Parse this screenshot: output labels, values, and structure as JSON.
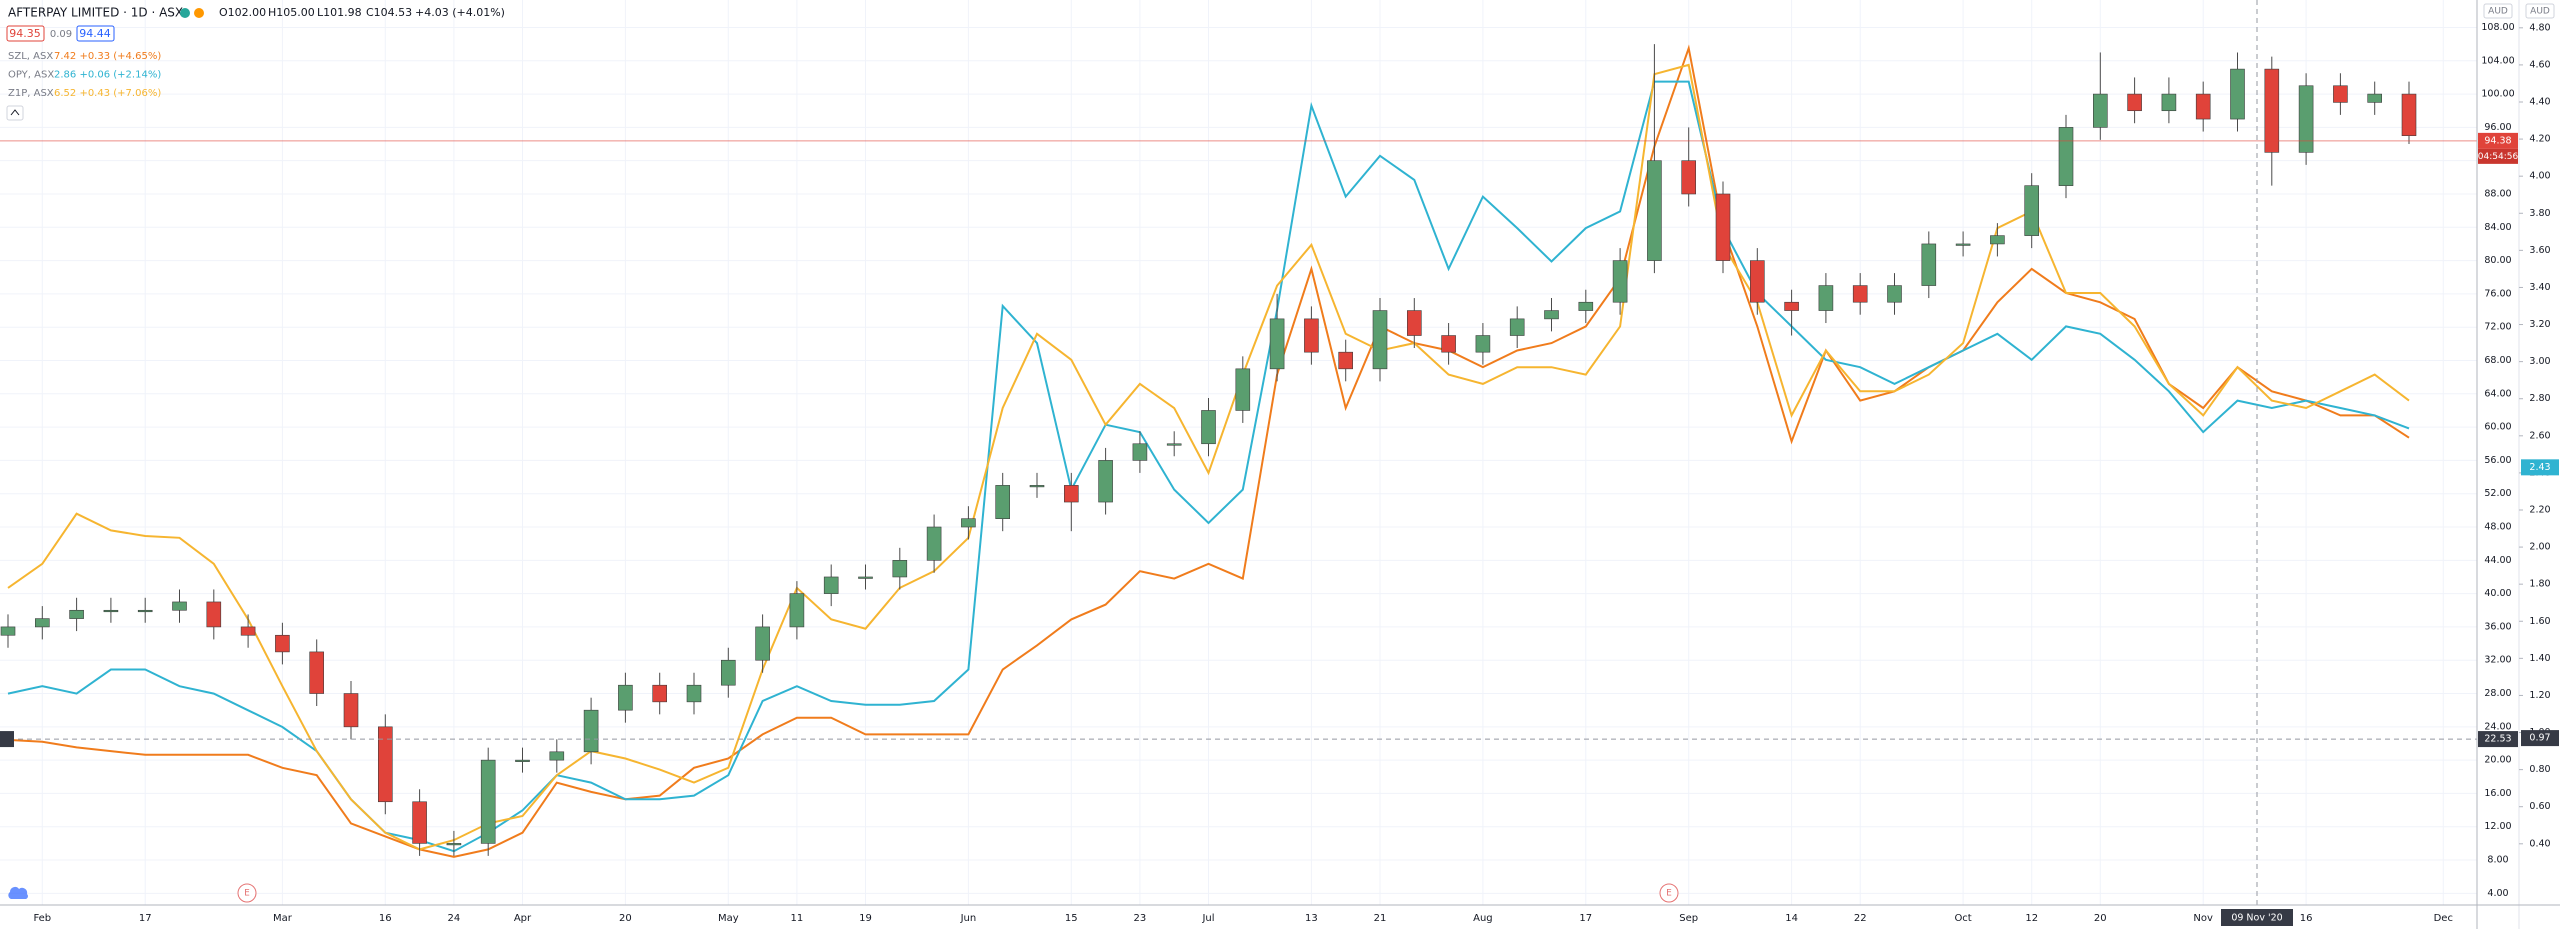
{
  "header": {
    "title": "AFTERPAY LIMITED · 1D · ASX",
    "ohlc": [
      "O102.00",
      "H105.00",
      "L101.98",
      "C104.53",
      "+4.03 (+4.01%)"
    ],
    "bid": "94.35",
    "spread": "0.09",
    "ask": "94.44",
    "axis_units": [
      "AUD",
      "AUD"
    ]
  },
  "chart_data": {
    "type": "candlestick",
    "grid": true,
    "categories": [
      null,
      "Feb",
      null,
      null,
      "17",
      null,
      null,
      null,
      "Mar",
      null,
      null,
      "16",
      null,
      "24",
      null,
      "Apr",
      null,
      null,
      "20",
      null,
      null,
      "May",
      null,
      "11",
      null,
      "19",
      null,
      null,
      "Jun",
      null,
      null,
      "15",
      null,
      "23",
      null,
      "Jul",
      null,
      null,
      "13",
      null,
      "21",
      null,
      null,
      "Aug",
      null,
      null,
      "17",
      null,
      null,
      "Sep",
      null,
      null,
      "14",
      null,
      "22",
      null,
      null,
      "Oct",
      null,
      "12",
      null,
      "20",
      null,
      null,
      "Nov",
      null,
      null,
      "16",
      null,
      null,
      null,
      "Dec"
    ],
    "open": [
      35,
      36,
      37,
      38,
      38,
      38,
      39,
      36,
      35,
      33,
      28,
      24,
      15,
      10,
      10,
      20,
      20,
      21,
      26,
      29,
      27,
      29,
      32,
      36,
      40,
      42,
      42,
      44,
      48,
      49,
      53,
      53,
      51,
      56,
      58,
      58,
      62,
      67,
      73,
      69,
      67,
      74,
      71,
      69,
      71,
      73,
      74,
      75,
      80,
      92,
      88,
      80,
      75,
      74,
      77,
      75,
      77,
      82,
      82,
      83,
      89,
      96,
      100,
      98,
      100,
      97,
      103,
      93,
      101,
      99,
      100,
      null
    ],
    "high": [
      37.5,
      38.5,
      39.5,
      39.5,
      39.5,
      40.5,
      40.5,
      37.5,
      36.5,
      34.5,
      29.5,
      25.5,
      16.5,
      11.5,
      21.5,
      21.5,
      22.5,
      27.5,
      30.5,
      30.5,
      30.5,
      33.5,
      37.5,
      41.5,
      43.5,
      43.5,
      45.5,
      49.5,
      50.5,
      54.5,
      54.5,
      54.5,
      57.5,
      59.5,
      59.5,
      63.5,
      68.5,
      76,
      74.5,
      70.5,
      75.5,
      75.5,
      72.5,
      72.5,
      74.5,
      75.5,
      76.5,
      81.5,
      106,
      96,
      89.5,
      81.5,
      76.5,
      78.5,
      78.5,
      78.5,
      83.5,
      83.5,
      84.5,
      90.5,
      97.5,
      105,
      102,
      102,
      101.5,
      105,
      104.5,
      102.5,
      102.5,
      101.5,
      101.5,
      null
    ],
    "low": [
      33.5,
      34.5,
      35.5,
      36.5,
      36.5,
      36.5,
      34.5,
      33.5,
      31.5,
      26.5,
      22.5,
      13.5,
      8.5,
      8.5,
      8.5,
      18.5,
      18.5,
      19.5,
      24.5,
      25.5,
      25.5,
      27.5,
      30.5,
      34.5,
      38.5,
      40.5,
      40.5,
      42.5,
      46.5,
      47.5,
      51.5,
      47.5,
      49.5,
      54.5,
      56.5,
      56.5,
      60.5,
      65.5,
      67.5,
      65.5,
      65.5,
      69.5,
      67.5,
      67.5,
      69.5,
      71.5,
      72.5,
      73.5,
      78.5,
      86.5,
      78.5,
      73.5,
      71,
      72.5,
      73.5,
      73.5,
      75.5,
      80.5,
      80.5,
      81.5,
      87.5,
      94.5,
      96.5,
      96.5,
      95.5,
      95.5,
      89,
      91.5,
      97.5,
      97.5,
      94,
      null
    ],
    "close": [
      36,
      37,
      38,
      38,
      38,
      39,
      36,
      35,
      33,
      28,
      24,
      15,
      10,
      10,
      20,
      20,
      21,
      26,
      29,
      27,
      29,
      32,
      36,
      40,
      42,
      42,
      44,
      48,
      49,
      53,
      53,
      51,
      56,
      58,
      58,
      62,
      67,
      73,
      69,
      67,
      74,
      71,
      69,
      71,
      73,
      74,
      75,
      80,
      92,
      88,
      80,
      75,
      74,
      77,
      75,
      77,
      82,
      82,
      83,
      89,
      96,
      100,
      98,
      100,
      97,
      103,
      93,
      101,
      99,
      100,
      95,
      null
    ],
    "up_color": "#5a9e6f",
    "down_color": "#e0433a",
    "ylim": [
      2.6,
      111.3
    ],
    "yticks": [
      {
        "value": 4,
        "label": "4.00"
      },
      {
        "value": 8,
        "label": "8.00"
      },
      {
        "value": 12,
        "label": "12.00"
      },
      {
        "value": 16,
        "label": "16.00"
      },
      {
        "value": 20,
        "label": "20.00"
      },
      {
        "value": 24,
        "label": "24.00"
      },
      {
        "value": 28,
        "label": "28.00"
      },
      {
        "value": 32,
        "label": "32.00"
      },
      {
        "value": 36,
        "label": "36.00"
      },
      {
        "value": 40,
        "label": "40.00"
      },
      {
        "value": 44,
        "label": "44.00"
      },
      {
        "value": 48,
        "label": "48.00"
      },
      {
        "value": 52,
        "label": "52.00"
      },
      {
        "value": 56,
        "label": "56.00"
      },
      {
        "value": 60,
        "label": "60.00"
      },
      {
        "value": 64,
        "label": "64.00"
      },
      {
        "value": 68,
        "label": "68.00"
      },
      {
        "value": 72,
        "label": "72.00"
      },
      {
        "value": 76,
        "label": "76.00"
      },
      {
        "value": 80,
        "label": "80.00"
      },
      {
        "value": 84,
        "label": "84.00"
      },
      {
        "value": 88,
        "label": "88.00"
      },
      {
        "value": 92,
        "label": "92.00"
      },
      {
        "value": 96,
        "label": "96.00"
      },
      {
        "value": 100,
        "label": "100.00"
      },
      {
        "value": 104,
        "label": "104.00"
      },
      {
        "value": 108,
        "label": "108.00"
      }
    ],
    "y2lim": [
      0.07,
      4.95
    ],
    "y2ticks": [
      {
        "value": 0.4,
        "label": "0.40"
      },
      {
        "value": 0.6,
        "label": "0.60"
      },
      {
        "value": 0.8,
        "label": "0.80"
      },
      {
        "value": 1,
        "label": "1.00"
      },
      {
        "value": 1.2,
        "label": "1.20"
      },
      {
        "value": 1.4,
        "label": "1.40"
      },
      {
        "value": 1.6,
        "label": "1.60"
      },
      {
        "value": 1.8,
        "label": "1.80"
      },
      {
        "value": 2,
        "label": "2.00"
      },
      {
        "value": 2.2,
        "label": "2.20"
      },
      {
        "value": 2.4,
        "label": "2.40"
      },
      {
        "value": 2.6,
        "label": "2.60"
      },
      {
        "value": 2.8,
        "label": "2.80"
      },
      {
        "value": 3,
        "label": "3.00"
      },
      {
        "value": 3.2,
        "label": "3.20"
      },
      {
        "value": 3.4,
        "label": "3.40"
      },
      {
        "value": 3.6,
        "label": "3.60"
      },
      {
        "value": 3.8,
        "label": "3.80"
      },
      {
        "value": 4,
        "label": "4.00"
      },
      {
        "value": 4.2,
        "label": "4.20"
      },
      {
        "value": 4.4,
        "label": "4.40"
      },
      {
        "value": 4.6,
        "label": "4.60"
      },
      {
        "value": 4.8,
        "label": "4.80"
      }
    ],
    "series": [
      {
        "name": "SZL, ASX",
        "legend_value": "7.42 +0.33 (+4.65%)",
        "color": "#f07c1c",
        "axis": "y2",
        "values": [
          0.96,
          0.95,
          0.92,
          0.9,
          0.88,
          0.88,
          0.88,
          0.88,
          0.81,
          0.77,
          0.51,
          0.44,
          0.37,
          0.33,
          0.37,
          0.46,
          0.73,
          0.68,
          0.64,
          0.66,
          0.81,
          0.86,
          0.99,
          1.08,
          1.08,
          0.99,
          0.99,
          0.99,
          0.99,
          1.34,
          1.47,
          1.61,
          1.69,
          1.87,
          1.83,
          1.91,
          1.83,
          2.93,
          3.5,
          2.75,
          3.19,
          3.1,
          3.06,
          2.97,
          3.06,
          3.1,
          3.19,
          3.45,
          4.16,
          4.69,
          3.72,
          3.19,
          2.57,
          3.06,
          2.79,
          2.84,
          2.97,
          3.06,
          3.32,
          3.5,
          3.37,
          3.32,
          3.23,
          2.88,
          2.75,
          2.97,
          2.84,
          2.79,
          2.71,
          2.71,
          2.59,
          null
        ]
      },
      {
        "name": "OPY, ASX",
        "legend_value": "2.86 +0.06 (+2.14%)",
        "color": "#2fb3d1",
        "axis": "y2",
        "values": [
          1.21,
          1.25,
          1.21,
          1.34,
          1.34,
          1.25,
          1.21,
          1.12,
          1.03,
          0.9,
          0.64,
          0.46,
          0.42,
          0.36,
          0.46,
          0.58,
          0.77,
          0.73,
          0.64,
          0.64,
          0.66,
          0.77,
          1.17,
          1.25,
          1.17,
          1.15,
          1.15,
          1.17,
          1.34,
          3.3,
          3.1,
          2.31,
          2.66,
          2.62,
          2.31,
          2.13,
          2.31,
          3.28,
          4.38,
          3.89,
          4.11,
          3.98,
          3.5,
          3.89,
          3.72,
          3.54,
          3.72,
          3.81,
          4.51,
          4.51,
          3.72,
          3.37,
          3.19,
          3.01,
          2.97,
          2.88,
          2.97,
          3.06,
          3.15,
          3.01,
          3.19,
          3.15,
          3.01,
          2.84,
          2.62,
          2.79,
          2.75,
          2.79,
          2.75,
          2.71,
          2.64,
          null
        ]
      },
      {
        "name": "Z1P, ASX",
        "legend_value": "6.52 +0.43 (+7.06%)",
        "color": "#f6b530",
        "axis": "y2",
        "values": [
          1.78,
          1.91,
          2.18,
          2.09,
          2.06,
          2.05,
          1.91,
          1.61,
          1.25,
          0.9,
          0.64,
          0.46,
          0.37,
          0.42,
          0.51,
          0.55,
          0.77,
          0.9,
          0.86,
          0.8,
          0.73,
          0.81,
          1.34,
          1.78,
          1.61,
          1.56,
          1.78,
          1.87,
          2.05,
          2.75,
          3.15,
          3.01,
          2.66,
          2.88,
          2.75,
          2.4,
          2.93,
          3.41,
          3.63,
          3.15,
          3.06,
          3.1,
          2.93,
          2.88,
          2.97,
          2.97,
          2.93,
          3.19,
          4.55,
          4.6,
          3.63,
          3.32,
          2.71,
          3.06,
          2.84,
          2.84,
          2.93,
          3.1,
          3.72,
          3.81,
          3.37,
          3.37,
          3.19,
          2.88,
          2.71,
          2.97,
          2.79,
          2.75,
          2.84,
          2.93,
          2.79,
          null
        ]
      }
    ],
    "price_line": {
      "value": 94.38,
      "label": "94.38",
      "countdown": "04:54:56"
    },
    "y2_marker": {
      "value": 2.43,
      "label": "2.43"
    },
    "crosshair": {
      "x_label": "09 Nov '20",
      "y": {
        "value": 22.53,
        "label": "22.53"
      },
      "y2": {
        "value": 0.97,
        "label": "0.97"
      }
    },
    "earnings": [
      "E",
      "E"
    ]
  }
}
